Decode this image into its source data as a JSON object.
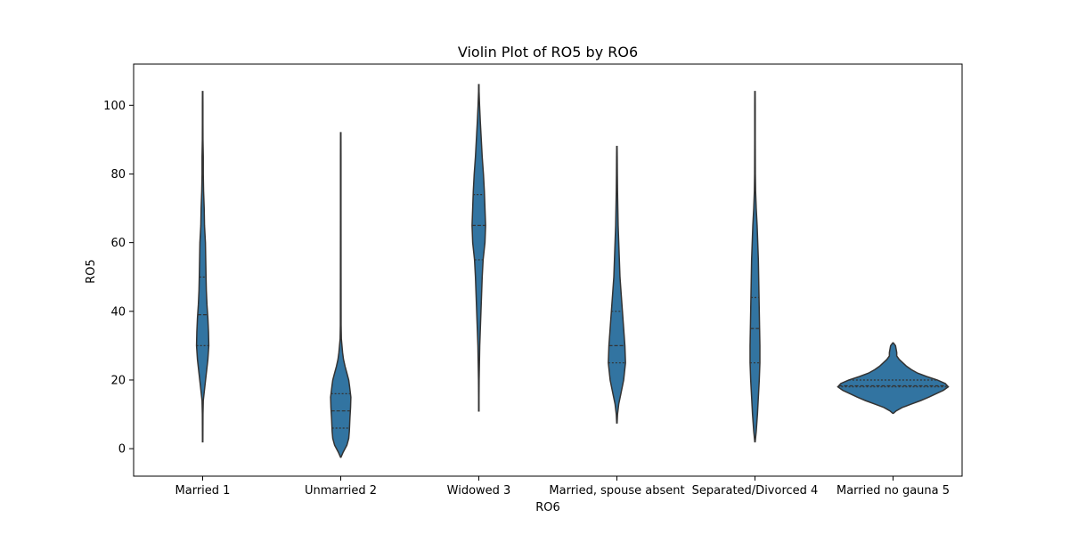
{
  "chart_data": {
    "type": "violin",
    "title": "Violin Plot of RO5 by RO6",
    "xlabel": "RO6",
    "ylabel": "RO5",
    "ylim": [
      -8,
      112
    ],
    "yticks": [
      0,
      20,
      40,
      60,
      80,
      100
    ],
    "color": "#3274a1",
    "edge_color": "#333333",
    "inner": "quartile",
    "categories": [
      "Married 1",
      "Unmarried 2",
      "Widowed 3",
      "Married, spouse absent",
      "Separated/Divorced 4",
      "Married no gauna 5"
    ],
    "violins": [
      {
        "category": "Married 1",
        "quartiles": [
          30,
          39,
          50
        ],
        "profile": [
          [
            2,
            0.3
          ],
          [
            10,
            0.5
          ],
          [
            14,
            1
          ],
          [
            18,
            3.5
          ],
          [
            22,
            6
          ],
          [
            26,
            8.5
          ],
          [
            30,
            10
          ],
          [
            34,
            9.5
          ],
          [
            38,
            8.5
          ],
          [
            42,
            7
          ],
          [
            46,
            6
          ],
          [
            50,
            5.5
          ],
          [
            55,
            5
          ],
          [
            60,
            4.5
          ],
          [
            65,
            3
          ],
          [
            70,
            2.5
          ],
          [
            75,
            1.5
          ],
          [
            80,
            1
          ],
          [
            85,
            1
          ],
          [
            90,
            0.5
          ],
          [
            95,
            0.4
          ],
          [
            100,
            0.4
          ],
          [
            104,
            0.3
          ]
        ]
      },
      {
        "category": "Unmarried 2",
        "quartiles": [
          6,
          11,
          16
        ],
        "profile": [
          [
            -2.5,
            0.3
          ],
          [
            -1,
            4
          ],
          [
            1,
            10
          ],
          [
            3,
            13
          ],
          [
            5,
            14
          ],
          [
            7,
            14.5
          ],
          [
            9,
            15
          ],
          [
            12,
            16
          ],
          [
            15,
            16.5
          ],
          [
            18,
            14.5
          ],
          [
            20,
            13
          ],
          [
            22,
            10
          ],
          [
            24,
            7
          ],
          [
            26,
            4.5
          ],
          [
            28,
            3
          ],
          [
            30,
            2
          ],
          [
            32,
            1
          ],
          [
            36,
            0.6
          ],
          [
            50,
            0.5
          ],
          [
            70,
            0.4
          ],
          [
            85,
            0.4
          ],
          [
            92,
            0.3
          ]
        ]
      },
      {
        "category": "Widowed 3",
        "quartiles": [
          55,
          65,
          74
        ],
        "profile": [
          [
            11,
            0.3
          ],
          [
            15,
            0.3
          ],
          [
            20,
            0.5
          ],
          [
            25,
            1
          ],
          [
            30,
            1.5
          ],
          [
            35,
            2.5
          ],
          [
            40,
            3.5
          ],
          [
            45,
            4.5
          ],
          [
            50,
            5.5
          ],
          [
            55,
            7
          ],
          [
            60,
            10
          ],
          [
            65,
            11
          ],
          [
            70,
            10
          ],
          [
            75,
            9
          ],
          [
            80,
            7.5
          ],
          [
            85,
            5.5
          ],
          [
            90,
            4
          ],
          [
            95,
            2.5
          ],
          [
            100,
            1.2
          ],
          [
            104,
            0.4
          ],
          [
            106,
            0.3
          ]
        ]
      },
      {
        "category": "Married, spouse absent",
        "quartiles": [
          25,
          30,
          40
        ],
        "profile": [
          [
            7.5,
            0.3
          ],
          [
            10,
            1
          ],
          [
            13,
            3
          ],
          [
            16,
            6.5
          ],
          [
            20,
            11
          ],
          [
            25,
            14
          ],
          [
            30,
            13
          ],
          [
            35,
            11
          ],
          [
            40,
            9
          ],
          [
            45,
            7
          ],
          [
            50,
            5
          ],
          [
            55,
            4
          ],
          [
            60,
            3
          ],
          [
            65,
            2
          ],
          [
            70,
            1.5
          ],
          [
            75,
            1
          ],
          [
            80,
            0.7
          ],
          [
            85,
            0.5
          ],
          [
            88,
            0.3
          ]
        ]
      },
      {
        "category": "Separated/Divorced 4",
        "quartiles": [
          25,
          35,
          44
        ],
        "profile": [
          [
            2,
            0.3
          ],
          [
            5,
            2
          ],
          [
            10,
            4
          ],
          [
            15,
            5.5
          ],
          [
            20,
            7
          ],
          [
            25,
            8
          ],
          [
            30,
            8
          ],
          [
            35,
            7.5
          ],
          [
            40,
            7
          ],
          [
            45,
            6.5
          ],
          [
            50,
            6
          ],
          [
            55,
            5.5
          ],
          [
            60,
            4.5
          ],
          [
            65,
            3.5
          ],
          [
            70,
            2
          ],
          [
            75,
            1
          ],
          [
            80,
            0.6
          ],
          [
            90,
            0.4
          ],
          [
            100,
            0.4
          ],
          [
            104,
            0.3
          ]
        ]
      },
      {
        "category": "Married no gauna 5",
        "quartiles": [
          18,
          18.3,
          20
        ],
        "profile": [
          [
            10.3,
            0.5
          ],
          [
            11,
            5
          ],
          [
            12,
            15
          ],
          [
            13,
            30
          ],
          [
            14,
            45
          ],
          [
            15,
            58
          ],
          [
            16,
            70
          ],
          [
            17,
            82
          ],
          [
            18,
            90
          ],
          [
            19,
            85
          ],
          [
            20,
            72
          ],
          [
            21,
            55
          ],
          [
            22,
            40
          ],
          [
            23,
            30
          ],
          [
            24,
            22
          ],
          [
            25,
            16
          ],
          [
            26,
            10
          ],
          [
            27,
            6
          ],
          [
            28,
            6
          ],
          [
            29,
            5
          ],
          [
            30,
            4
          ],
          [
            30.8,
            0.5
          ]
        ]
      }
    ]
  }
}
